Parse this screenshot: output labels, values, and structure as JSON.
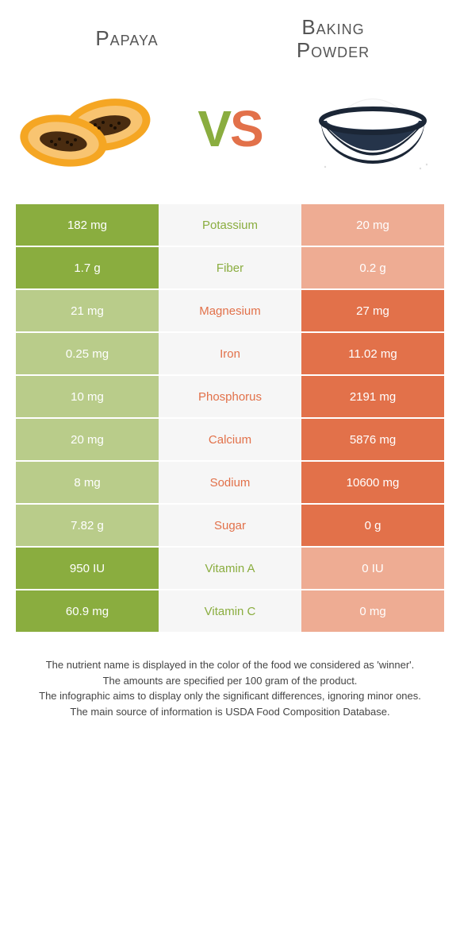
{
  "left_name": "Papaya",
  "right_name": "Baking Powder",
  "title_fontsize": 26,
  "colors": {
    "left": "#8aad3f",
    "right": "#e2714a",
    "mid_bg": "#f6f6f6",
    "left_dim": "#b9cc8a",
    "right_dim": "#eeac93"
  },
  "rows": [
    {
      "left": "182 mg",
      "label": "Potassium",
      "right": "20 mg",
      "winner": "left"
    },
    {
      "left": "1.7 g",
      "label": "Fiber",
      "right": "0.2 g",
      "winner": "left"
    },
    {
      "left": "21 mg",
      "label": "Magnesium",
      "right": "27 mg",
      "winner": "right"
    },
    {
      "left": "0.25 mg",
      "label": "Iron",
      "right": "11.02 mg",
      "winner": "right"
    },
    {
      "left": "10 mg",
      "label": "Phosphorus",
      "right": "2191 mg",
      "winner": "right"
    },
    {
      "left": "20 mg",
      "label": "Calcium",
      "right": "5876 mg",
      "winner": "right"
    },
    {
      "left": "8 mg",
      "label": "Sodium",
      "right": "10600 mg",
      "winner": "right"
    },
    {
      "left": "7.82 g",
      "label": "Sugar",
      "right": "0 g",
      "winner": "right"
    },
    {
      "left": "950 IU",
      "label": "Vitamin A",
      "right": "0 IU",
      "winner": "left"
    },
    {
      "left": "60.9 mg",
      "label": "Vitamin C",
      "right": "0 mg",
      "winner": "left"
    }
  ],
  "footer_lines": [
    "The nutrient name is displayed in the color of the food we considered as 'winner'.",
    "The amounts are specified per 100 gram of the product.",
    "The infographic aims to display only the significant differences, ignoring minor ones.",
    "The main source of information is USDA Food Composition Database."
  ]
}
